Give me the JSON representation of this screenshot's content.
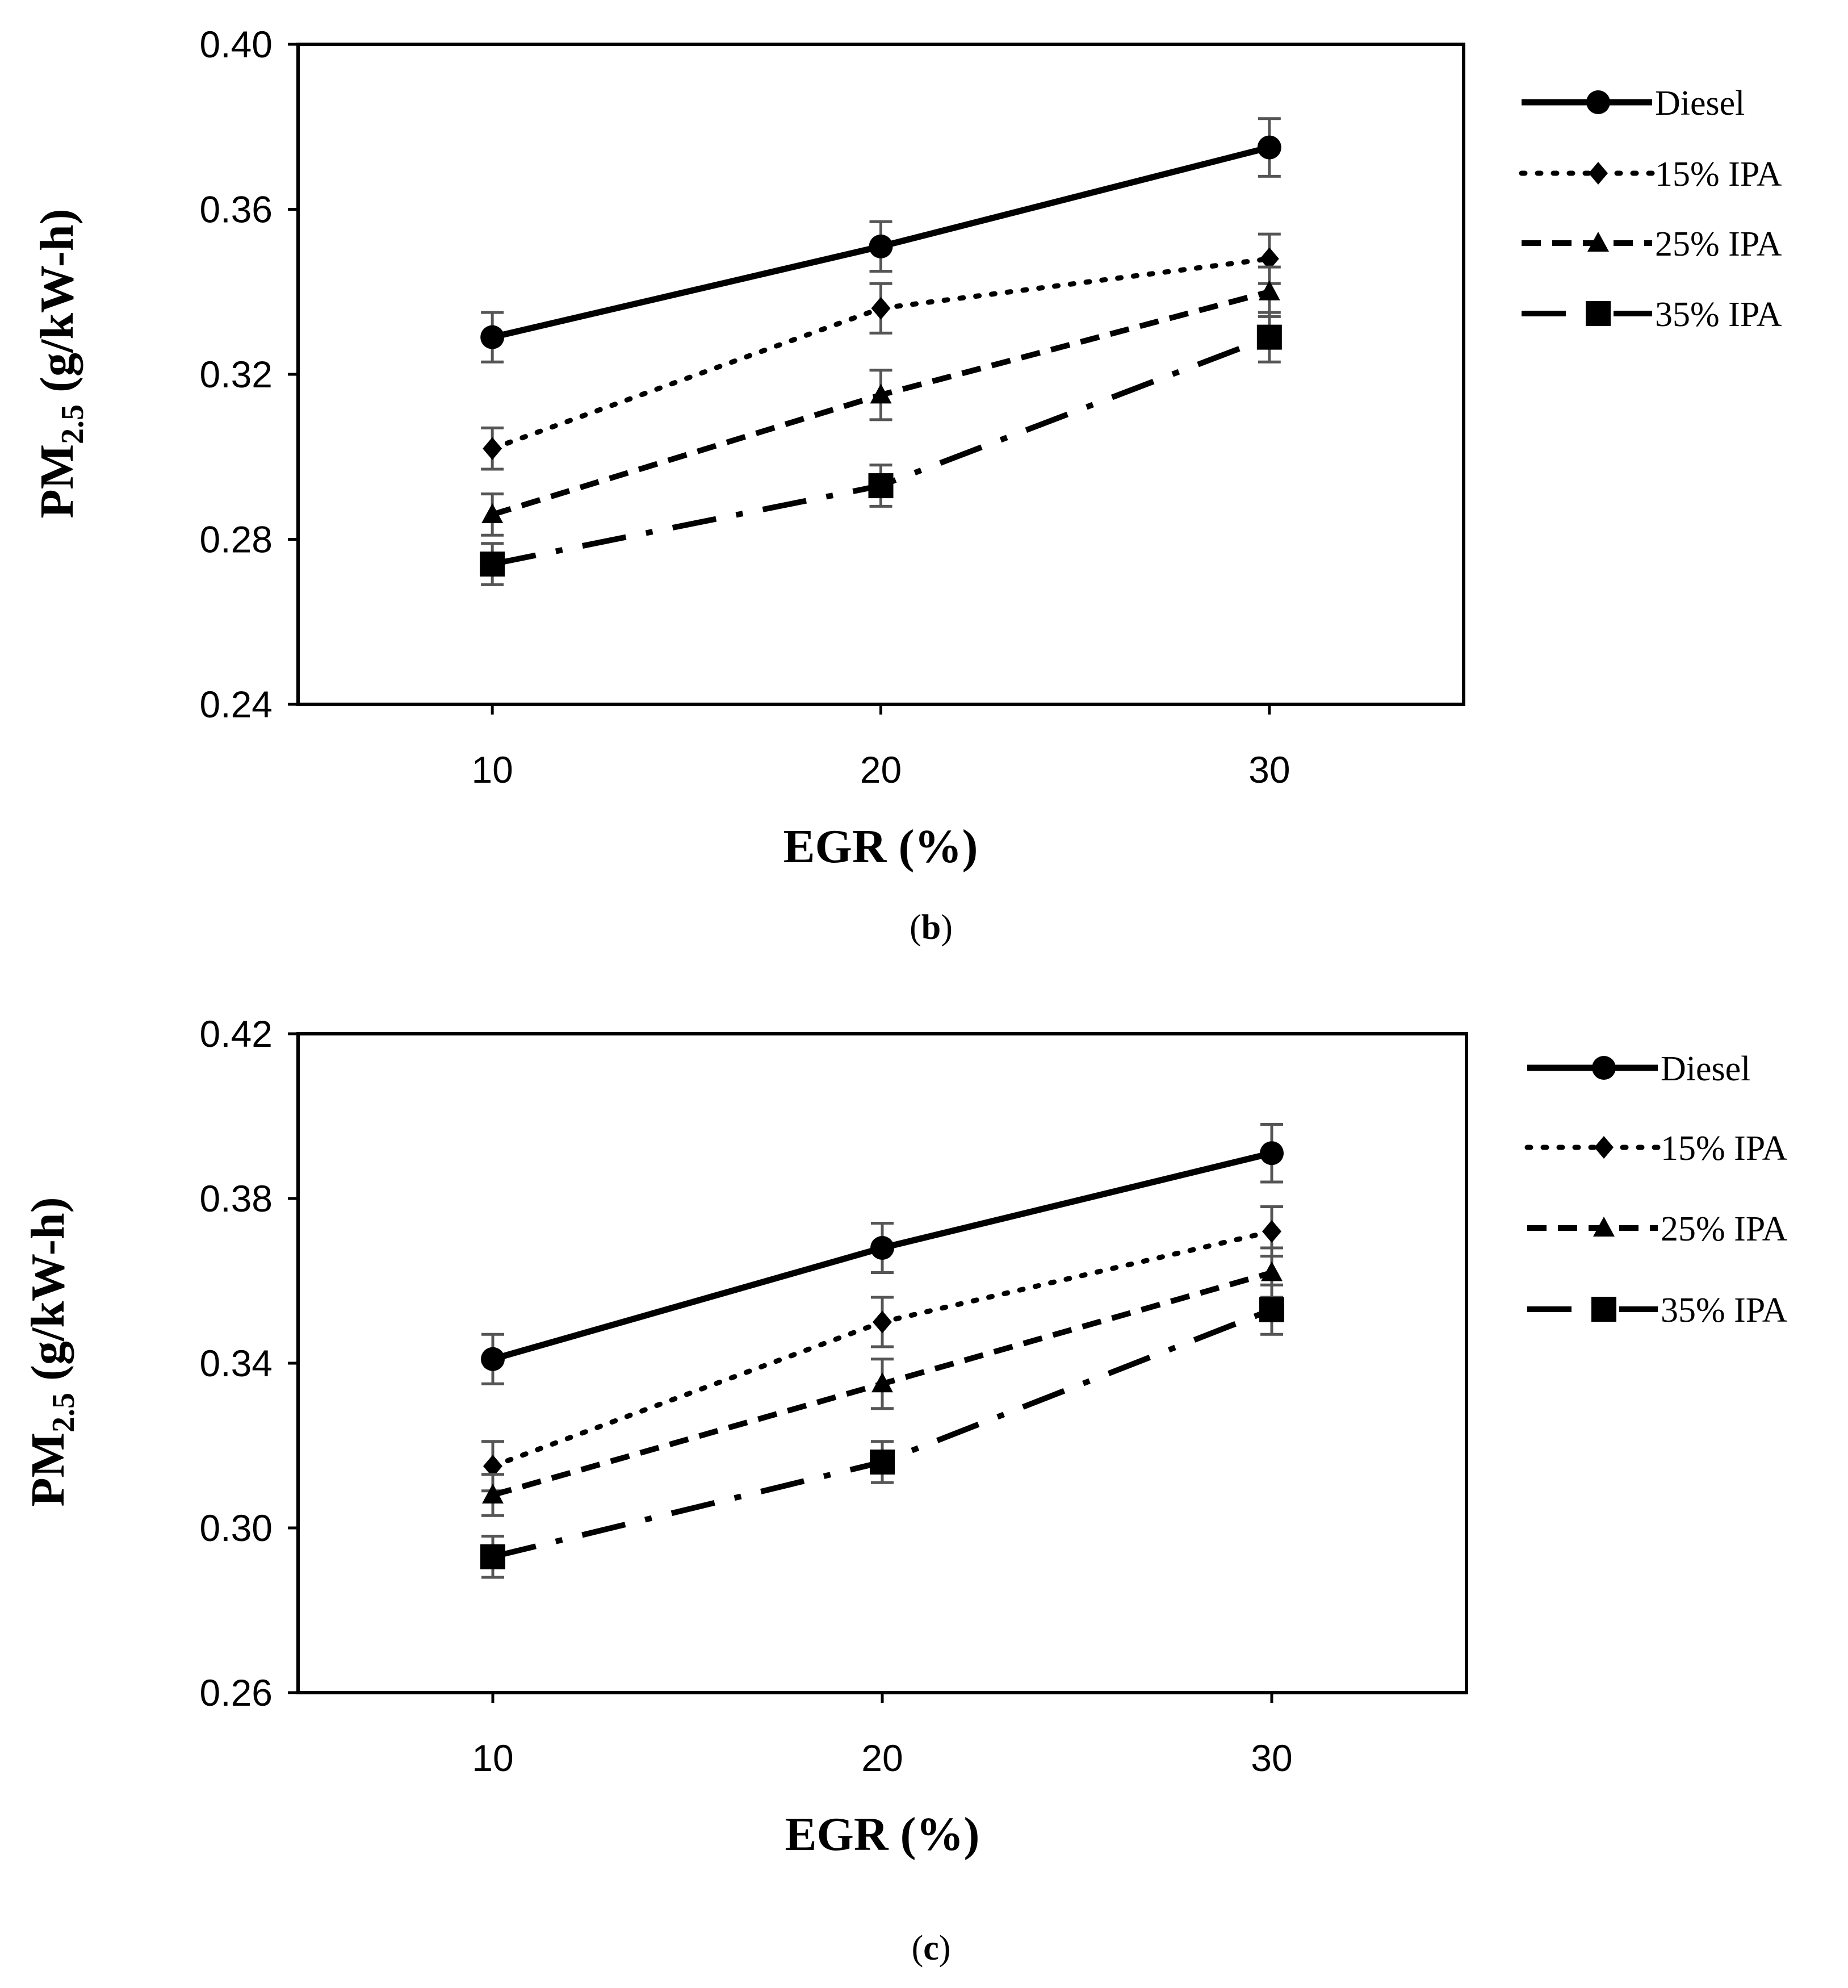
{
  "chart_data": [
    {
      "type": "line",
      "panel_label": "b",
      "caption_open": "(",
      "caption_close": ")",
      "title": "",
      "xlabel": "EGR (%)",
      "ylabel_main": "PM",
      "ylabel_sub": "2.5",
      "ylabel_unit": " (g/kW-h)",
      "x": [
        10,
        20,
        30
      ],
      "x_tick_labels": [
        "10",
        "20",
        "30"
      ],
      "xlim": [
        5,
        35
      ],
      "ylim": [
        0.24,
        0.4
      ],
      "y_ticks": [
        0.24,
        0.28,
        0.32,
        0.36,
        0.4
      ],
      "y_tick_labels": [
        "0.24",
        "0.28",
        "0.32",
        "0.36",
        "0.40"
      ],
      "grid": false,
      "legend_position": "right",
      "series": [
        {
          "name": "Diesel",
          "values": [
            0.329,
            0.351,
            0.375
          ],
          "errors": [
            0.006,
            0.006,
            0.007
          ]
        },
        {
          "name": "15% IPA",
          "values": [
            0.302,
            0.336,
            0.348
          ],
          "errors": [
            0.005,
            0.006,
            0.006
          ]
        },
        {
          "name": "25% IPA",
          "values": [
            0.286,
            0.315,
            0.34
          ],
          "errors": [
            0.005,
            0.006,
            0.006
          ]
        },
        {
          "name": "35% IPA",
          "values": [
            0.274,
            0.293,
            0.329
          ],
          "errors": [
            0.005,
            0.005,
            0.006
          ]
        }
      ]
    },
    {
      "type": "line",
      "panel_label": "c",
      "caption_open": "(",
      "caption_close": ")",
      "title": "",
      "xlabel": "EGR (%)",
      "ylabel_main": "PM",
      "ylabel_sub": "2.5",
      "ylabel_unit": " (g/kW-h)",
      "x": [
        10,
        20,
        30
      ],
      "x_tick_labels": [
        "10",
        "20",
        "30"
      ],
      "xlim": [
        5,
        35
      ],
      "ylim": [
        0.26,
        0.42
      ],
      "y_ticks": [
        0.26,
        0.3,
        0.34,
        0.38,
        0.42
      ],
      "y_tick_labels": [
        "0.26",
        "0.30",
        "0.34",
        "0.38",
        "0.42"
      ],
      "grid": false,
      "legend_position": "right",
      "series": [
        {
          "name": "Diesel",
          "values": [
            0.341,
            0.368,
            0.391
          ],
          "errors": [
            0.006,
            0.006,
            0.007
          ]
        },
        {
          "name": "15% IPA",
          "values": [
            0.315,
            0.35,
            0.372
          ],
          "errors": [
            0.006,
            0.006,
            0.006
          ]
        },
        {
          "name": "25% IPA",
          "values": [
            0.308,
            0.335,
            0.362
          ],
          "errors": [
            0.005,
            0.006,
            0.006
          ]
        },
        {
          "name": "35% IPA",
          "values": [
            0.293,
            0.316,
            0.353
          ],
          "errors": [
            0.005,
            0.005,
            0.006
          ]
        }
      ]
    }
  ]
}
